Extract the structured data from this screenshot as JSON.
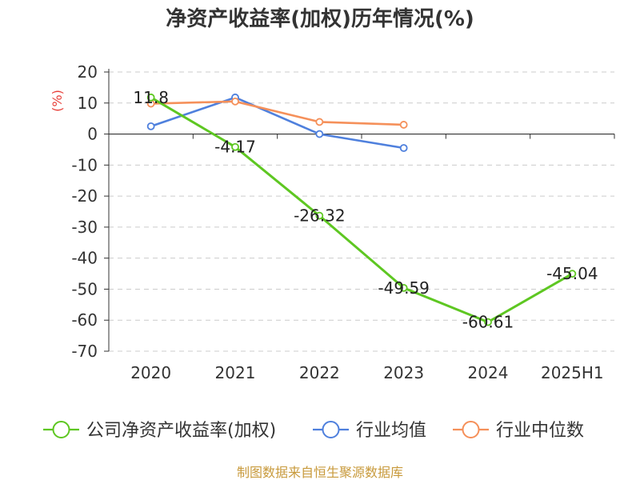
{
  "chart_data": {
    "type": "line",
    "title": "净资产收益率(加权)历年情况(%)",
    "ylabel": "(%)",
    "categories": [
      "2020",
      "2021",
      "2022",
      "2023",
      "2024",
      "2025H1"
    ],
    "yticks": [
      20,
      10,
      0,
      -10,
      -20,
      -30,
      -40,
      -50,
      -60,
      -70
    ],
    "ylim": [
      -70,
      20
    ],
    "grid": true,
    "legend_position": "bottom",
    "series": [
      {
        "name": "公司净资产收益率(加权)",
        "color": "#5ec722",
        "values": [
          11.8,
          -4.17,
          -26.32,
          -49.59,
          -60.61,
          -45.04
        ],
        "labels": [
          "11.8",
          "-4.17",
          "-26.32",
          "-49.59",
          "-60.61",
          "-45.04"
        ]
      },
      {
        "name": "行业均值",
        "color": "#4f80dd",
        "values": [
          2.5,
          11.8,
          0.0,
          -4.5,
          null,
          null
        ]
      },
      {
        "name": "行业中位数",
        "color": "#f5905a",
        "values": [
          9.8,
          10.5,
          3.9,
          3.0,
          null,
          null
        ]
      }
    ]
  },
  "source": "制图数据来自恒生聚源数据库"
}
